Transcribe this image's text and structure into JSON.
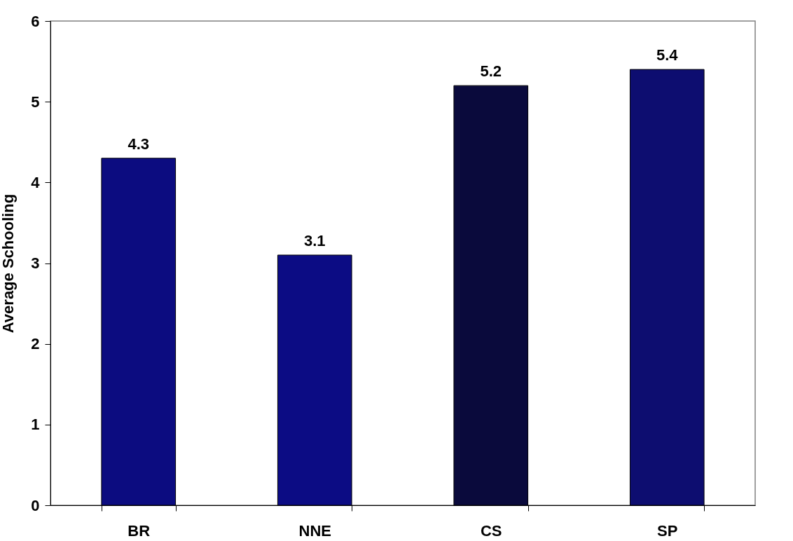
{
  "chart_data": {
    "type": "bar",
    "ylabel": "Average Schooling",
    "categories": [
      "BR",
      "NNE",
      "CS",
      "SP"
    ],
    "values": [
      4.3,
      3.1,
      5.2,
      5.4
    ],
    "colors": [
      "#0c0c80",
      "#0c0c84",
      "#0a0a3c",
      "#0d0d70"
    ],
    "ylim": [
      0,
      6
    ],
    "yticks": [
      0,
      1,
      2,
      3,
      4,
      5,
      6
    ],
    "grid": false,
    "data_labels": true
  }
}
